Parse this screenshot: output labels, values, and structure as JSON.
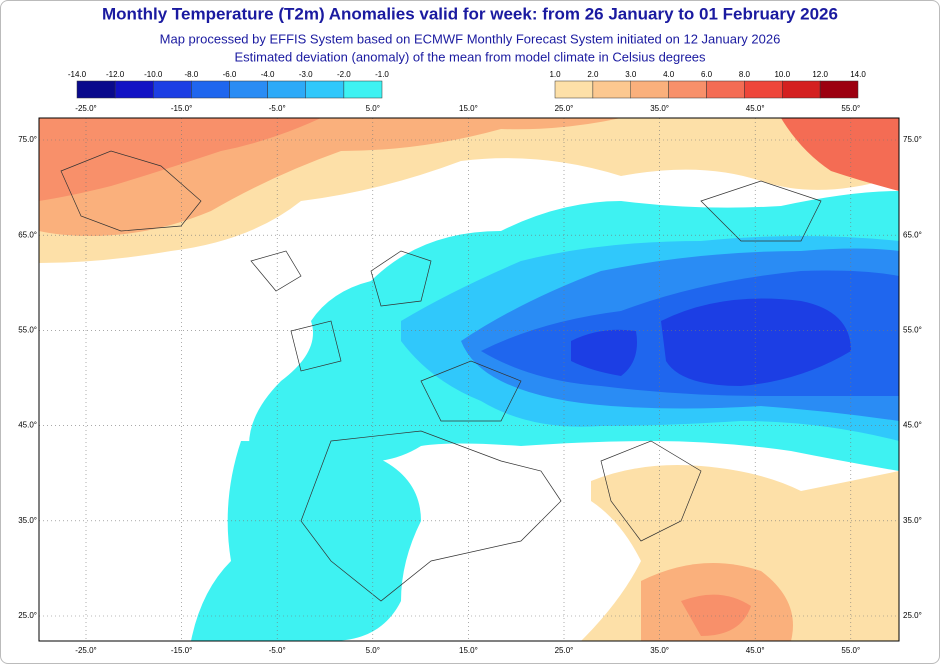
{
  "header": {
    "title": "Monthly Temperature (T2m) Anomalies valid for week: from 26 January to 01 February 2026",
    "subtitle": "Map processed by EFFIS System based on ECMWF Monthly Forecast System initiated on 12 January 2026",
    "description": "Estimated deviation (anomaly) of the mean from model climate in Celsius degrees"
  },
  "legend": {
    "cold": {
      "labels": [
        "-14.0",
        "-12.0",
        "-10.0",
        "-8.0",
        "-6.0",
        "-4.0",
        "-3.0",
        "-2.0",
        "-1.0"
      ],
      "colors": [
        "#0a0a8c",
        "#1212c4",
        "#1c3ee4",
        "#1f66ee",
        "#2a8cf4",
        "#2daaf8",
        "#30c8fb",
        "#3ef2f2"
      ]
    },
    "warm": {
      "labels": [
        "1.0",
        "2.0",
        "3.0",
        "4.0",
        "6.0",
        "8.0",
        "10.0",
        "12.0",
        "14.0"
      ],
      "colors": [
        "#fde0a8",
        "#fcc890",
        "#fab07c",
        "#f8906a",
        "#f46c54",
        "#ee463a",
        "#d42020",
        "#9c0010"
      ]
    }
  },
  "map": {
    "lon_labels": [
      "-25.0°",
      "-15.0°",
      "-5.0°",
      "5.0°",
      "15.0°",
      "25.0°",
      "35.0°",
      "45.0°",
      "55.0°"
    ],
    "lat_labels": [
      "75.0°",
      "65.0°",
      "55.0°",
      "45.0°",
      "35.0°",
      "25.0°"
    ]
  }
}
